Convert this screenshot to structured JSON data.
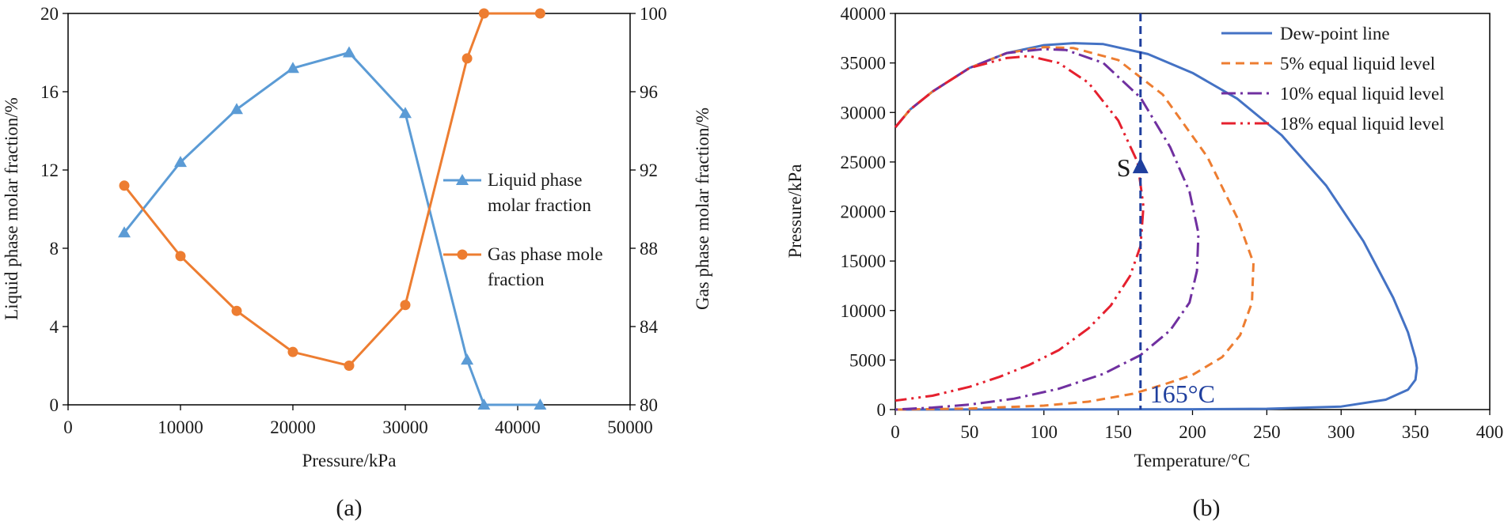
{
  "chart_data": [
    {
      "panel": "(a)",
      "type": "line",
      "xlabel": "Pressure/kPa",
      "ylabel": "Liquid phase molar fraction/%",
      "y2label": "Gas phase molar fraction/%",
      "xlim": [
        0,
        50000
      ],
      "xticks": [
        "0",
        "10000",
        "20000",
        "30000",
        "40000",
        "50000"
      ],
      "ylim": [
        0,
        20
      ],
      "yticks": [
        "0",
        "4",
        "8",
        "12",
        "16",
        "20"
      ],
      "y2lim": [
        80,
        100
      ],
      "y2ticks": [
        "80",
        "84",
        "88",
        "92",
        "96",
        "100"
      ],
      "legend_position": "center-right",
      "series": [
        {
          "name": "Liquid phase molar fraction",
          "legend_lines": [
            "Liquid phase",
            "molar fraction"
          ],
          "axis": "left",
          "marker": "triangle",
          "color": "#5b9bd5",
          "x": [
            5000,
            10000,
            15000,
            20000,
            25000,
            30000,
            35500,
            37000,
            42000
          ],
          "y": [
            8.8,
            12.4,
            15.1,
            17.2,
            18.0,
            14.9,
            2.3,
            0,
            0
          ]
        },
        {
          "name": "Gas phase mole fraction",
          "legend_lines": [
            "Gas phase mole",
            "fraction"
          ],
          "axis": "right",
          "marker": "circle",
          "color": "#ed7d31",
          "x": [
            5000,
            10000,
            15000,
            20000,
            25000,
            30000,
            35500,
            37000,
            42000
          ],
          "y": [
            91.2,
            87.6,
            84.8,
            82.7,
            82.0,
            85.1,
            97.7,
            100,
            100
          ]
        }
      ]
    },
    {
      "panel": "(b)",
      "type": "line",
      "xlabel": "Temperature/°C",
      "ylabel": "Pressure/kPa",
      "xlim": [
        0,
        400
      ],
      "xticks": [
        "0",
        "50",
        "100",
        "150",
        "200",
        "250",
        "300",
        "350",
        "400"
      ],
      "ylim": [
        0,
        40000
      ],
      "yticks": [
        "0",
        "5000",
        "10000",
        "15000",
        "20000",
        "25000",
        "30000",
        "35000",
        "40000"
      ],
      "legend_position": "top-right",
      "series": [
        {
          "name": "Dew-point line",
          "style": "solid",
          "color": "#4472c4",
          "x": [
            0,
            10,
            25,
            50,
            75,
            100,
            120,
            140,
            170,
            200,
            230,
            260,
            290,
            315,
            335,
            345,
            350,
            351,
            350,
            345,
            330,
            300,
            250,
            200,
            100,
            50,
            0
          ],
          "y": [
            28500,
            30300,
            32100,
            34500,
            36000,
            36800,
            37000,
            36900,
            35900,
            34000,
            31400,
            27700,
            22600,
            17000,
            11300,
            7800,
            5200,
            4200,
            3000,
            2000,
            1000,
            300,
            80,
            30,
            10,
            5,
            0
          ]
        },
        {
          "name": "5% equal liquid level",
          "style": "dashed",
          "color": "#ed7d31",
          "x": [
            0,
            10,
            25,
            50,
            75,
            100,
            120,
            150,
            180,
            210,
            230,
            241,
            240,
            232,
            220,
            200,
            180,
            160,
            130,
            100,
            50,
            0
          ],
          "y": [
            28500,
            30300,
            32100,
            34500,
            36000,
            36600,
            36500,
            35300,
            31800,
            25500,
            19400,
            14800,
            10800,
            7500,
            5300,
            3500,
            2500,
            1600,
            800,
            400,
            100,
            0
          ]
        },
        {
          "name": "10% equal liquid level",
          "style": "dashdot",
          "color": "#7030a0",
          "x": [
            0,
            10,
            25,
            50,
            75,
            100,
            115,
            140,
            165,
            185,
            198,
            204,
            203,
            198,
            185,
            165,
            140,
            110,
            80,
            50,
            25,
            0
          ],
          "y": [
            28500,
            30300,
            32100,
            34500,
            36000,
            36400,
            36300,
            35000,
            31500,
            26500,
            22000,
            17800,
            14000,
            10800,
            8000,
            5500,
            3600,
            2100,
            1100,
            500,
            200,
            0
          ]
        },
        {
          "name": "18% equal liquid level",
          "style": "dashdotdot",
          "color": "#e5202e",
          "x": [
            0,
            10,
            25,
            50,
            75,
            90,
            110,
            130,
            150,
            163,
            167,
            165,
            158,
            145,
            130,
            110,
            90,
            70,
            50,
            25,
            0
          ],
          "y": [
            28500,
            30300,
            32100,
            34500,
            35500,
            35700,
            35000,
            33000,
            29200,
            25000,
            20500,
            16500,
            13500,
            10500,
            8200,
            6000,
            4500,
            3300,
            2300,
            1400,
            900
          ]
        }
      ],
      "annotations": {
        "vertical_line_x": 165,
        "vertical_line_label": "165°C",
        "point_label": "S",
        "point_x": 165,
        "point_y": 24500,
        "line_color": "#1f3f9e"
      }
    }
  ]
}
